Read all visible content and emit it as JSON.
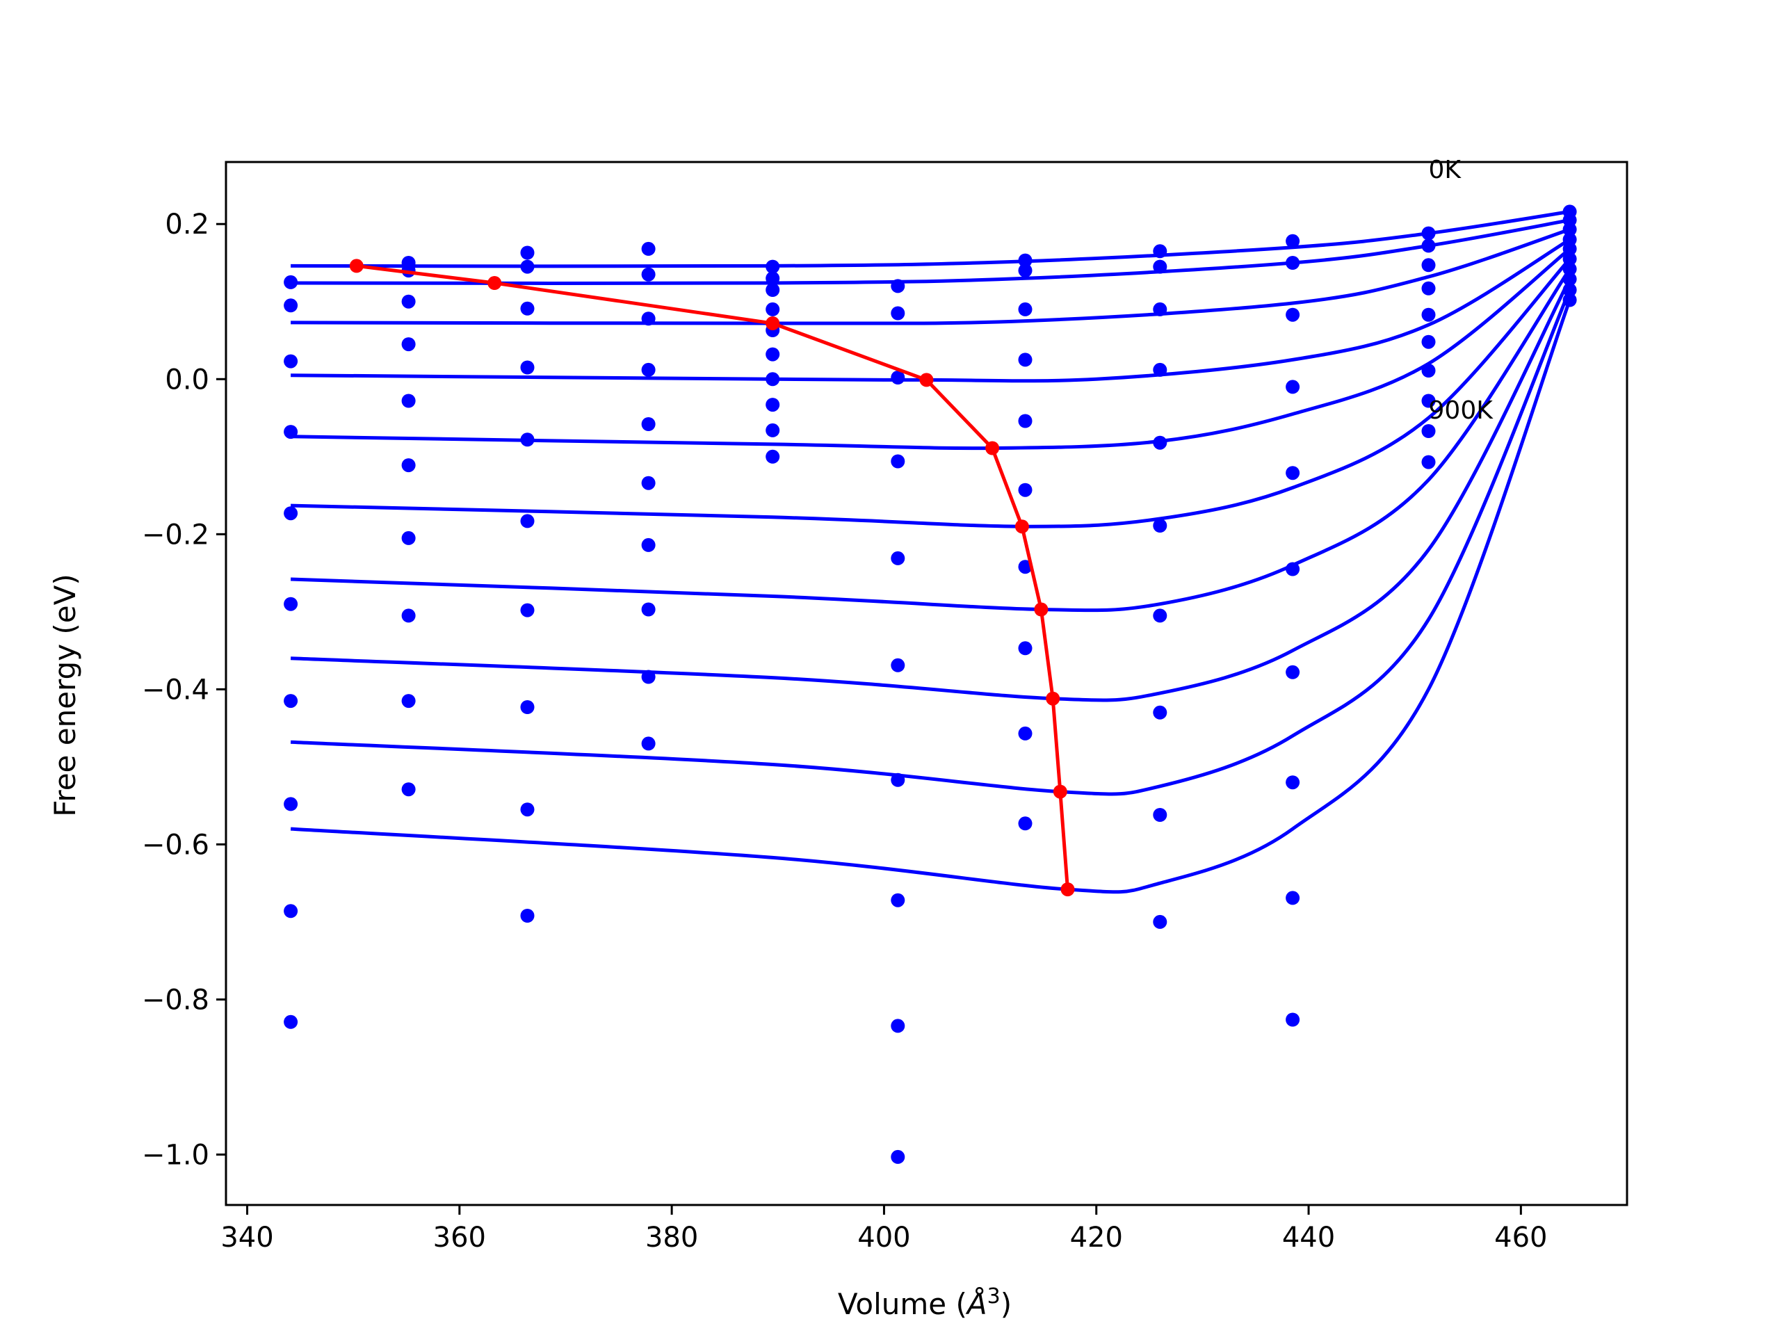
{
  "chart_data": {
    "type": "scatter",
    "xlabel_main": "Volume (",
    "xlabel_unit": "Å",
    "xlabel_exp": "3",
    "xlabel_close": ")",
    "ylabel": "Free energy (eV)",
    "xlim": [
      338,
      470
    ],
    "ylim": [
      -1.065,
      0.28
    ],
    "x_ticks": [
      340,
      360,
      380,
      400,
      420,
      440,
      460
    ],
    "y_ticks": [
      0.2,
      0.0,
      -0.2,
      -0.4,
      -0.6,
      -0.8,
      -1.0
    ],
    "y_tick_labels": [
      "0.2",
      "0.0",
      "−0.2",
      "−0.4",
      "−0.6",
      "−0.8",
      "−1.0"
    ],
    "annotations": [
      {
        "text": "0K",
        "x": 451.3,
        "y": 0.27
      },
      {
        "text": "900K",
        "x": 451.3,
        "y": -0.04
      }
    ],
    "colors": {
      "points": "#0000ff",
      "fits": "#0000ff",
      "minima": "#ff0000"
    },
    "points": {
      "x": [
        344.1,
        355.2,
        366.4,
        377.8,
        389.5,
        401.3,
        413.3,
        426.0,
        438.5,
        451.3,
        464.6
      ],
      "columns": [
        [
          0.125,
          0.095,
          0.023,
          -0.068,
          -0.173,
          -0.29,
          -0.415,
          -0.548,
          -0.686,
          -0.829
        ],
        [
          0.15,
          0.14,
          0.1,
          0.045,
          -0.028,
          -0.111,
          -0.205,
          -0.305,
          -0.415,
          -0.529
        ],
        [
          0.163,
          0.145,
          0.091,
          0.015,
          -0.078,
          -0.183,
          -0.298,
          -0.423,
          -0.555,
          -0.692
        ],
        [
          0.168,
          0.135,
          0.078,
          0.012,
          -0.058,
          -0.134,
          -0.214,
          -0.297,
          -0.384,
          -0.47
        ],
        [
          0.145,
          0.13,
          0.115,
          0.09,
          0.063,
          0.032,
          0.0,
          -0.033,
          -0.066,
          -0.1
        ],
        [
          0.12,
          0.085,
          0.002,
          -0.106,
          -0.231,
          -0.369,
          -0.517,
          -0.672,
          -0.834,
          -1.003
        ],
        [
          0.153,
          0.14,
          0.09,
          0.025,
          -0.054,
          -0.143,
          -0.242,
          -0.347,
          -0.457,
          -0.573
        ],
        [
          0.165,
          0.145,
          0.09,
          0.012,
          -0.082,
          -0.189,
          -0.305,
          -0.43,
          -0.562,
          -0.7
        ],
        [
          0.178,
          0.15,
          0.083,
          -0.01,
          -0.121,
          -0.245,
          -0.378,
          -0.52,
          -0.669,
          -0.826
        ],
        [
          0.188,
          0.172,
          0.147,
          0.117,
          0.083,
          0.048,
          0.011,
          -0.028,
          -0.067,
          -0.107
        ],
        [
          0.216,
          0.205,
          0.193,
          0.18,
          0.168,
          0.155,
          0.142,
          0.129,
          0.115,
          0.102
        ]
      ]
    },
    "fits": [
      {
        "x": [
          344.1,
          389.5,
          413.3,
          438.5,
          451.3,
          464.6
        ],
        "y": [
          0.146,
          0.146,
          0.152,
          0.17,
          0.188,
          0.216
        ]
      },
      {
        "x": [
          344.1,
          389.5,
          413.3,
          438.5,
          451.3,
          464.6
        ],
        "y": [
          0.124,
          0.124,
          0.13,
          0.15,
          0.172,
          0.205
        ]
      },
      {
        "x": [
          344.1,
          389.5,
          413.3,
          438.5,
          451.3,
          464.6
        ],
        "y": [
          0.073,
          0.072,
          0.075,
          0.098,
          0.132,
          0.193
        ]
      },
      {
        "x": [
          344.1,
          389.5,
          404,
          420,
          438.5,
          451.3,
          464.6
        ],
        "y": [
          0.005,
          0.0,
          -0.001,
          0.0,
          0.025,
          0.07,
          0.18
        ]
      },
      {
        "x": [
          344.1,
          389.5,
          410.2,
          426,
          438.5,
          451.3,
          464.6
        ],
        "y": [
          -0.074,
          -0.084,
          -0.089,
          -0.08,
          -0.045,
          0.02,
          0.168
        ]
      },
      {
        "x": [
          344.1,
          389.5,
          413.0,
          426,
          438.5,
          451.3,
          464.6
        ],
        "y": [
          -0.163,
          -0.178,
          -0.19,
          -0.18,
          -0.14,
          -0.05,
          0.155
        ]
      },
      {
        "x": [
          344.1,
          389.5,
          414.8,
          426,
          438.5,
          451.3,
          464.6
        ],
        "y": [
          -0.258,
          -0.28,
          -0.297,
          -0.29,
          -0.24,
          -0.13,
          0.142
        ]
      },
      {
        "x": [
          344.1,
          389.5,
          415.9,
          426,
          438.5,
          451.3,
          464.6
        ],
        "y": [
          -0.36,
          -0.385,
          -0.412,
          -0.405,
          -0.35,
          -0.22,
          0.129
        ]
      },
      {
        "x": [
          344.1,
          389.5,
          416.6,
          426,
          438.5,
          451.3,
          464.6
        ],
        "y": [
          -0.468,
          -0.497,
          -0.532,
          -0.525,
          -0.46,
          -0.31,
          0.115
        ]
      },
      {
        "x": [
          344.1,
          389.5,
          417.3,
          426,
          438.5,
          451.3,
          464.6
        ],
        "y": [
          -0.58,
          -0.617,
          -0.658,
          -0.65,
          -0.58,
          -0.4,
          0.102
        ]
      }
    ],
    "minima": {
      "x": [
        350.3,
        363.3,
        389.5,
        404.0,
        410.2,
        413.0,
        414.8,
        415.9,
        416.6,
        417.3
      ],
      "y": [
        0.146,
        0.124,
        0.072,
        -0.001,
        -0.089,
        -0.19,
        -0.297,
        -0.412,
        -0.532,
        -0.658
      ]
    }
  }
}
